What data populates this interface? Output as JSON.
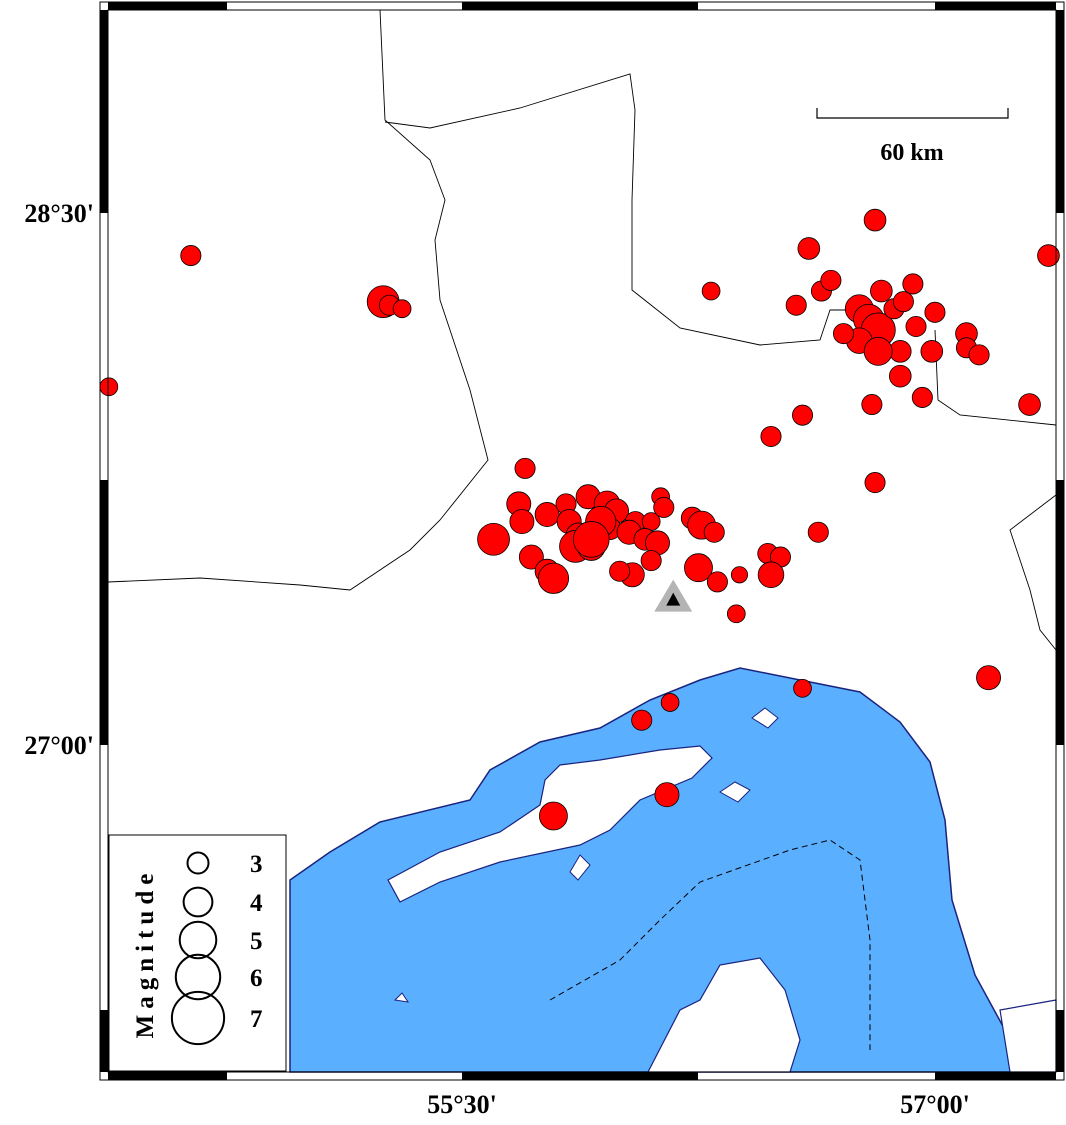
{
  "map": {
    "lon_range": [
      54.35,
      57.36
    ],
    "lat_range": [
      26.1,
      29.09
    ],
    "lon_ticks": [
      {
        "value": 55.5,
        "label": "55°30'"
      },
      {
        "value": 57.0,
        "label": "57°00'"
      }
    ],
    "lat_ticks": [
      {
        "value": 28.5,
        "label": "28°30'"
      },
      {
        "value": 27.0,
        "label": "27°00'"
      }
    ],
    "colors": {
      "sea": "#5aafff",
      "coastline": "#1a237e",
      "event": "#ff0000",
      "station": "#b4b4b4"
    },
    "scale_bar": {
      "label": "60 km",
      "length_km": 60
    },
    "station": {
      "lon": 56.17,
      "lat": 27.41,
      "symbol": "triangle"
    }
  },
  "legend": {
    "title": "Magnitude",
    "entries": [
      {
        "mag": 3,
        "label": "3"
      },
      {
        "mag": 4,
        "label": "4"
      },
      {
        "mag": 5,
        "label": "5"
      },
      {
        "mag": 6,
        "label": "6"
      },
      {
        "mag": 7,
        "label": "7"
      }
    ]
  },
  "events": [
    [
      54.64,
      28.38,
      2.9
    ],
    [
      54.38,
      28.01,
      2.6
    ],
    [
      55.25,
      28.25,
      4.4
    ],
    [
      55.27,
      28.24,
      2.9
    ],
    [
      55.31,
      28.23,
      2.6
    ],
    [
      56.29,
      28.28,
      2.6
    ],
    [
      56.6,
      28.4,
      3.1
    ],
    [
      56.81,
      28.48,
      3.1
    ],
    [
      57.36,
      28.38,
      3.1
    ],
    [
      56.56,
      28.24,
      2.9
    ],
    [
      56.64,
      28.28,
      2.9
    ],
    [
      56.67,
      28.31,
      2.9
    ],
    [
      56.76,
      28.23,
      3.9
    ],
    [
      56.79,
      28.2,
      4.2
    ],
    [
      56.82,
      28.17,
      4.7
    ],
    [
      56.83,
      28.28,
      3.1
    ],
    [
      56.76,
      28.14,
      3.6
    ],
    [
      56.71,
      28.16,
      2.9
    ],
    [
      56.87,
      28.23,
      2.9
    ],
    [
      56.93,
      28.3,
      2.9
    ],
    [
      56.9,
      28.25,
      2.9
    ],
    [
      56.94,
      28.18,
      2.9
    ],
    [
      57.0,
      28.22,
      2.9
    ],
    [
      56.89,
      28.11,
      3.1
    ],
    [
      56.82,
      28.11,
      3.9
    ],
    [
      56.99,
      28.11,
      3.1
    ],
    [
      57.1,
      28.16,
      3.1
    ],
    [
      57.1,
      28.12,
      2.9
    ],
    [
      57.14,
      28.1,
      2.9
    ],
    [
      56.89,
      28.04,
      3.1
    ],
    [
      56.96,
      27.98,
      2.9
    ],
    [
      56.8,
      27.96,
      2.9
    ],
    [
      57.3,
      27.96,
      3.1
    ],
    [
      56.58,
      27.93,
      2.9
    ],
    [
      56.48,
      27.87,
      2.9
    ],
    [
      56.81,
      27.74,
      2.9
    ],
    [
      56.63,
      27.6,
      2.9
    ],
    [
      55.7,
      27.78,
      2.9
    ],
    [
      55.68,
      27.68,
      3.4
    ],
    [
      55.69,
      27.63,
      3.4
    ],
    [
      55.77,
      27.65,
      3.4
    ],
    [
      55.6,
      27.58,
      4.4
    ],
    [
      55.83,
      27.68,
      2.9
    ],
    [
      55.84,
      27.63,
      3.4
    ],
    [
      55.9,
      27.7,
      3.4
    ],
    [
      55.96,
      27.68,
      3.6
    ],
    [
      55.99,
      27.66,
      3.4
    ],
    [
      56.05,
      27.63,
      2.9
    ],
    [
      56.1,
      27.63,
      2.6
    ],
    [
      56.13,
      27.7,
      2.6
    ],
    [
      56.14,
      27.67,
      2.9
    ],
    [
      55.87,
      27.59,
      3.6
    ],
    [
      55.86,
      27.56,
      4.4
    ],
    [
      55.91,
      27.56,
      3.9
    ],
    [
      55.97,
      27.61,
      3.1
    ],
    [
      56.03,
      27.6,
      3.4
    ],
    [
      56.08,
      27.58,
      3.1
    ],
    [
      56.12,
      27.57,
      3.4
    ],
    [
      56.04,
      27.48,
      3.4
    ],
    [
      56.0,
      27.49,
      2.9
    ],
    [
      56.1,
      27.52,
      2.9
    ],
    [
      55.72,
      27.53,
      3.4
    ],
    [
      55.77,
      27.49,
      3.4
    ],
    [
      55.79,
      27.47,
      4.2
    ],
    [
      56.23,
      27.64,
      3.1
    ],
    [
      56.26,
      27.62,
      3.9
    ],
    [
      56.3,
      27.6,
      2.9
    ],
    [
      56.25,
      27.5,
      3.9
    ],
    [
      56.31,
      27.46,
      2.9
    ],
    [
      56.38,
      27.48,
      2.4
    ],
    [
      56.47,
      27.54,
      2.9
    ],
    [
      56.51,
      27.53,
      2.9
    ],
    [
      56.48,
      27.48,
      3.6
    ],
    [
      56.37,
      27.37,
      2.6
    ],
    [
      55.94,
      27.63,
      4.2
    ],
    [
      55.91,
      27.58,
      4.9
    ],
    [
      57.17,
      27.19,
      3.4
    ],
    [
      56.58,
      27.16,
      2.6
    ],
    [
      56.16,
      27.12,
      2.6
    ],
    [
      56.07,
      27.07,
      2.9
    ],
    [
      56.15,
      26.86,
      3.4
    ],
    [
      55.79,
      26.8,
      3.9
    ]
  ]
}
